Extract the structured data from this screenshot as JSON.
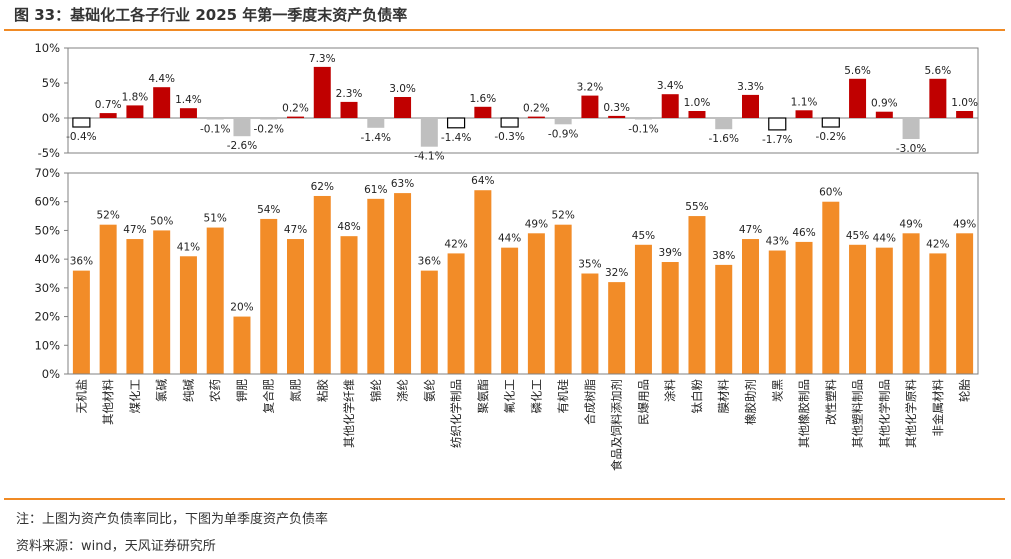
{
  "header": {
    "title": "图 33：基础化工各子行业 2025 年第一季度末资产负债率"
  },
  "footer": {
    "note": "注：上图为资产负债率同比，下图为单季度资产负债率",
    "source": "资料来源：wind，天风证券研究所"
  },
  "colors": {
    "accent": "#f08a24",
    "positive": "#c00000",
    "negative": "#bfbfbf",
    "level": "#f28c28",
    "axis": "#808080"
  },
  "chart_data": [
    {
      "type": "bar",
      "title": "资产负债率同比",
      "categories": [
        "无机盐",
        "其他材料",
        "煤化工",
        "氯碱",
        "纯碱",
        "农药",
        "钾肥",
        "复合肥",
        "氮肥",
        "粘胶",
        "其他化学纤维",
        "锦纶",
        "涤纶",
        "氨纶",
        "纺织化学制品",
        "聚氨酯",
        "氟化工",
        "磷化工",
        "有机硅",
        "合成树脂",
        "食品及饲料添加剂",
        "民爆用品",
        "涂料",
        "钛白粉",
        "膜材料",
        "橡胶助剂",
        "炭黑",
        "其他橡胶制品",
        "改性塑料",
        "其他塑料制品",
        "其他化学制品",
        "其他化学原料",
        "非金属材料",
        "轮胎"
      ],
      "values": [
        -0.4,
        0.7,
        1.8,
        4.4,
        1.4,
        -0.1,
        -2.6,
        -0.2,
        0.2,
        7.3,
        2.3,
        -1.4,
        3.0,
        -4.1,
        -1.4,
        1.6,
        -0.3,
        0.2,
        -0.9,
        3.2,
        0.3,
        -0.1,
        3.4,
        1.0,
        -1.6,
        3.3,
        -1.7,
        1.1,
        -0.2,
        5.6,
        0.9,
        -3.0,
        5.6,
        1.0
      ],
      "value_labels": [
        "-0.4%",
        "0.7%",
        "1.8%",
        "4.4%",
        "1.4%",
        "-0.1%",
        "-2.6%",
        "-0.2%",
        "0.2%",
        "7.3%",
        "2.3%",
        "-1.4%",
        "3.0%",
        "-4.1%",
        "-1.4%",
        "1.6%",
        "-0.3%",
        "0.2%",
        "-0.9%",
        "3.2%",
        "0.3%",
        "-0.1%",
        "3.4%",
        "1.0%",
        "-1.6%",
        "3.3%",
        "-1.7%",
        "1.1%",
        "-0.2%",
        "5.6%",
        "0.9%",
        "-3.0%",
        "5.6%",
        "1.0%"
      ],
      "outlined": [
        0,
        14,
        16,
        26,
        28
      ],
      "yticks": [
        "10%",
        "5%",
        "0%",
        "-5%"
      ],
      "ylim": [
        -5,
        10
      ],
      "unit": "%"
    },
    {
      "type": "bar",
      "title": "单季度资产负债率",
      "categories": [
        "无机盐",
        "其他材料",
        "煤化工",
        "氯碱",
        "纯碱",
        "农药",
        "钾肥",
        "复合肥",
        "氮肥",
        "粘胶",
        "其他化学纤维",
        "锦纶",
        "涤纶",
        "氨纶",
        "纺织化学制品",
        "聚氨酯",
        "氟化工",
        "磷化工",
        "有机硅",
        "合成树脂",
        "食品及饲料添加剂",
        "民爆用品",
        "涂料",
        "钛白粉",
        "膜材料",
        "橡胶助剂",
        "炭黑",
        "其他橡胶制品",
        "改性塑料",
        "其他塑料制品",
        "其他化学制品",
        "其他化学原料",
        "非金属材料",
        "轮胎"
      ],
      "values": [
        36,
        52,
        47,
        50,
        41,
        51,
        20,
        54,
        47,
        62,
        48,
        61,
        63,
        36,
        42,
        64,
        44,
        49,
        52,
        35,
        32,
        45,
        39,
        55,
        38,
        47,
        43,
        46,
        60,
        45,
        44,
        49,
        42,
        49
      ],
      "value_labels": [
        "36%",
        "52%",
        "47%",
        "50%",
        "41%",
        "51%",
        "20%",
        "54%",
        "47%",
        "62%",
        "48%",
        "61%",
        "63%",
        "36%",
        "42%",
        "64%",
        "44%",
        "49%",
        "52%",
        "35%",
        "32%",
        "45%",
        "39%",
        "55%",
        "38%",
        "47%",
        "43%",
        "46%",
        "60%",
        "45%",
        "44%",
        "49%",
        "42%",
        "49%"
      ],
      "yticks": [
        "70%",
        "60%",
        "50%",
        "40%",
        "30%",
        "20%",
        "10%",
        "0%"
      ],
      "ylim": [
        0,
        70
      ],
      "unit": "%"
    }
  ]
}
